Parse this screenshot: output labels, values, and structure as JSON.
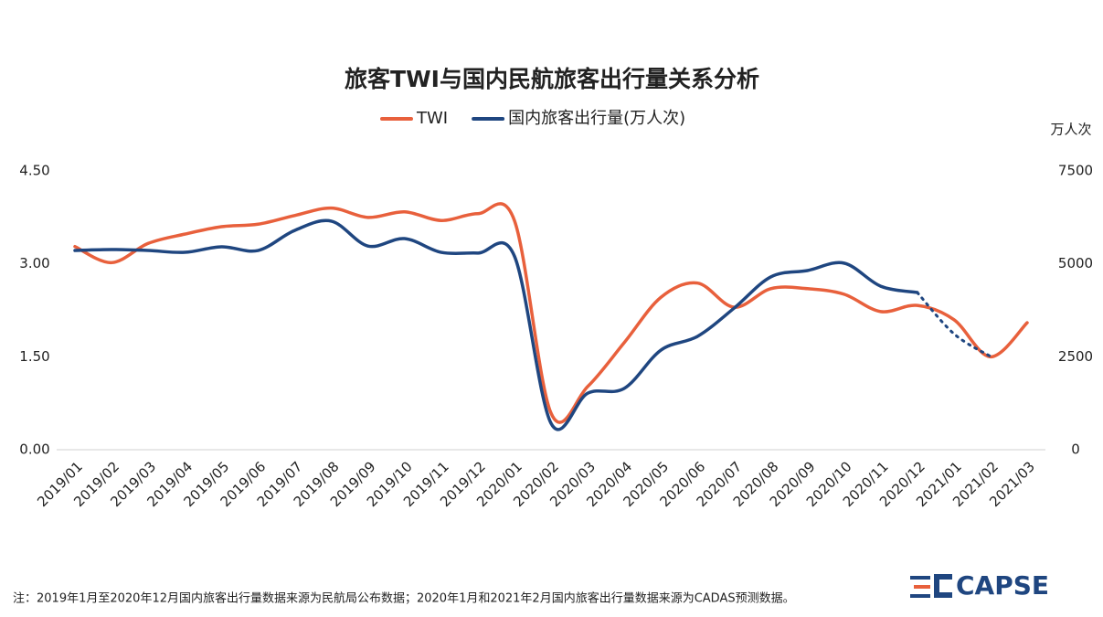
{
  "chart_data": {
    "type": "line",
    "title": "旅客TWI与国内民航旅客出行量关系分析",
    "y2_label": "万人次",
    "note": "注：2019年1月至2020年12月国内旅客出行量数据来源为民航局公布数据；2020年1月和2021年2月国内旅客出行量数据来源为CADAS预测数据。",
    "logo": "CAPSE",
    "categories": [
      "2019/01",
      "2019/02",
      "2019/03",
      "2019/04",
      "2019/05",
      "2019/06",
      "2019/07",
      "2019/08",
      "2019/09",
      "2019/10",
      "2019/11",
      "2019/12",
      "2020/01",
      "2020/02",
      "2020/03",
      "2020/04",
      "2020/05",
      "2020/06",
      "2020/07",
      "2020/08",
      "2020/09",
      "2020/10",
      "2020/11",
      "2020/12",
      "2021/01",
      "2021/02",
      "2021/03"
    ],
    "series": [
      {
        "name": "TWI",
        "color": "#e8603c",
        "axis": "y",
        "values": [
          3.28,
          3.02,
          3.33,
          3.48,
          3.6,
          3.64,
          3.78,
          3.9,
          3.75,
          3.84,
          3.7,
          3.81,
          3.7,
          0.59,
          1.02,
          1.73,
          2.46,
          2.69,
          2.3,
          2.6,
          2.6,
          2.51,
          2.23,
          2.33,
          2.1,
          1.5,
          2.05
        ]
      },
      {
        "name": "国内旅客出行量(万人次)",
        "color": "#1f4680",
        "axis": "y2",
        "dashed_from": 23,
        "values": [
          5360,
          5385,
          5360,
          5310,
          5460,
          5360,
          5900,
          6150,
          5480,
          5680,
          5310,
          5290,
          5210,
          710,
          1520,
          1650,
          2680,
          3050,
          3810,
          4650,
          4820,
          5020,
          4400,
          4230,
          3120,
          2510,
          null
        ]
      }
    ],
    "ylim": [
      0,
      4.5
    ],
    "yticks": [
      {
        "value": 0,
        "label": "0.00"
      },
      {
        "value": 1.5,
        "label": "1.50"
      },
      {
        "value": 3,
        "label": "3.00"
      },
      {
        "value": 4.5,
        "label": "4.50"
      }
    ],
    "y2lim": [
      0,
      7500
    ],
    "y2ticks": [
      0,
      2500,
      5000,
      7500
    ],
    "legend": "top"
  }
}
